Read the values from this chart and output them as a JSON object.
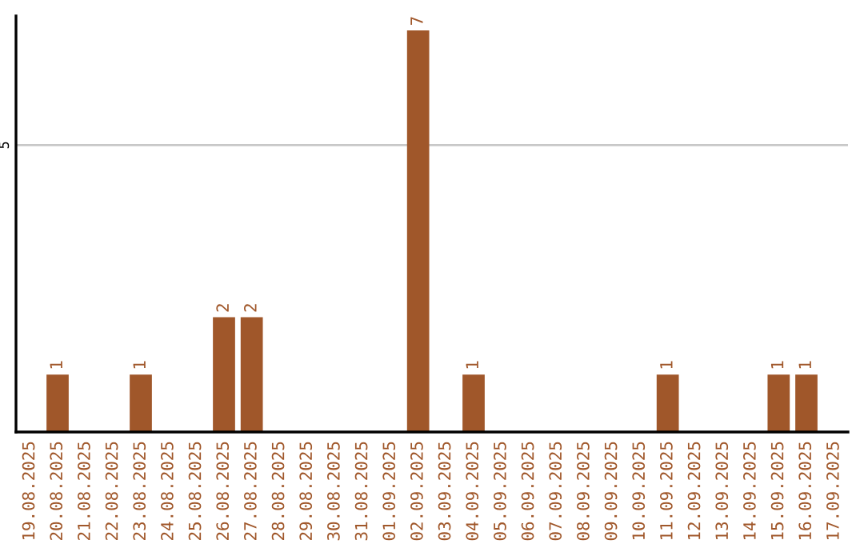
{
  "chart_data": {
    "type": "bar",
    "categories": [
      "19.08.2025",
      "20.08.2025",
      "21.08.2025",
      "22.08.2025",
      "23.08.2025",
      "24.08.2025",
      "25.08.2025",
      "26.08.2025",
      "27.08.2025",
      "28.08.2025",
      "29.08.2025",
      "30.08.2025",
      "31.08.2025",
      "01.09.2025",
      "02.09.2025",
      "03.09.2025",
      "04.09.2025",
      "05.09.2025",
      "06.09.2025",
      "07.09.2025",
      "08.09.2025",
      "09.09.2025",
      "10.09.2025",
      "11.09.2025",
      "12.09.2025",
      "13.09.2025",
      "14.09.2025",
      "15.09.2025",
      "16.09.2025",
      "17.09.2025"
    ],
    "values": [
      0,
      1,
      0,
      0,
      1,
      0,
      0,
      2,
      2,
      0,
      0,
      0,
      0,
      0,
      7,
      0,
      1,
      0,
      0,
      0,
      0,
      0,
      0,
      1,
      0,
      0,
      0,
      1,
      1,
      0
    ],
    "value_labels": [
      null,
      "1",
      null,
      null,
      "1",
      null,
      null,
      "2",
      "2",
      null,
      null,
      null,
      null,
      null,
      "7",
      null,
      "1",
      null,
      null,
      null,
      null,
      null,
      null,
      "1",
      null,
      null,
      null,
      "1",
      "1",
      null
    ],
    "color": "#a0572a",
    "ylim": [
      0,
      7.25
    ],
    "yticks": [
      5
    ],
    "grid": "y"
  }
}
